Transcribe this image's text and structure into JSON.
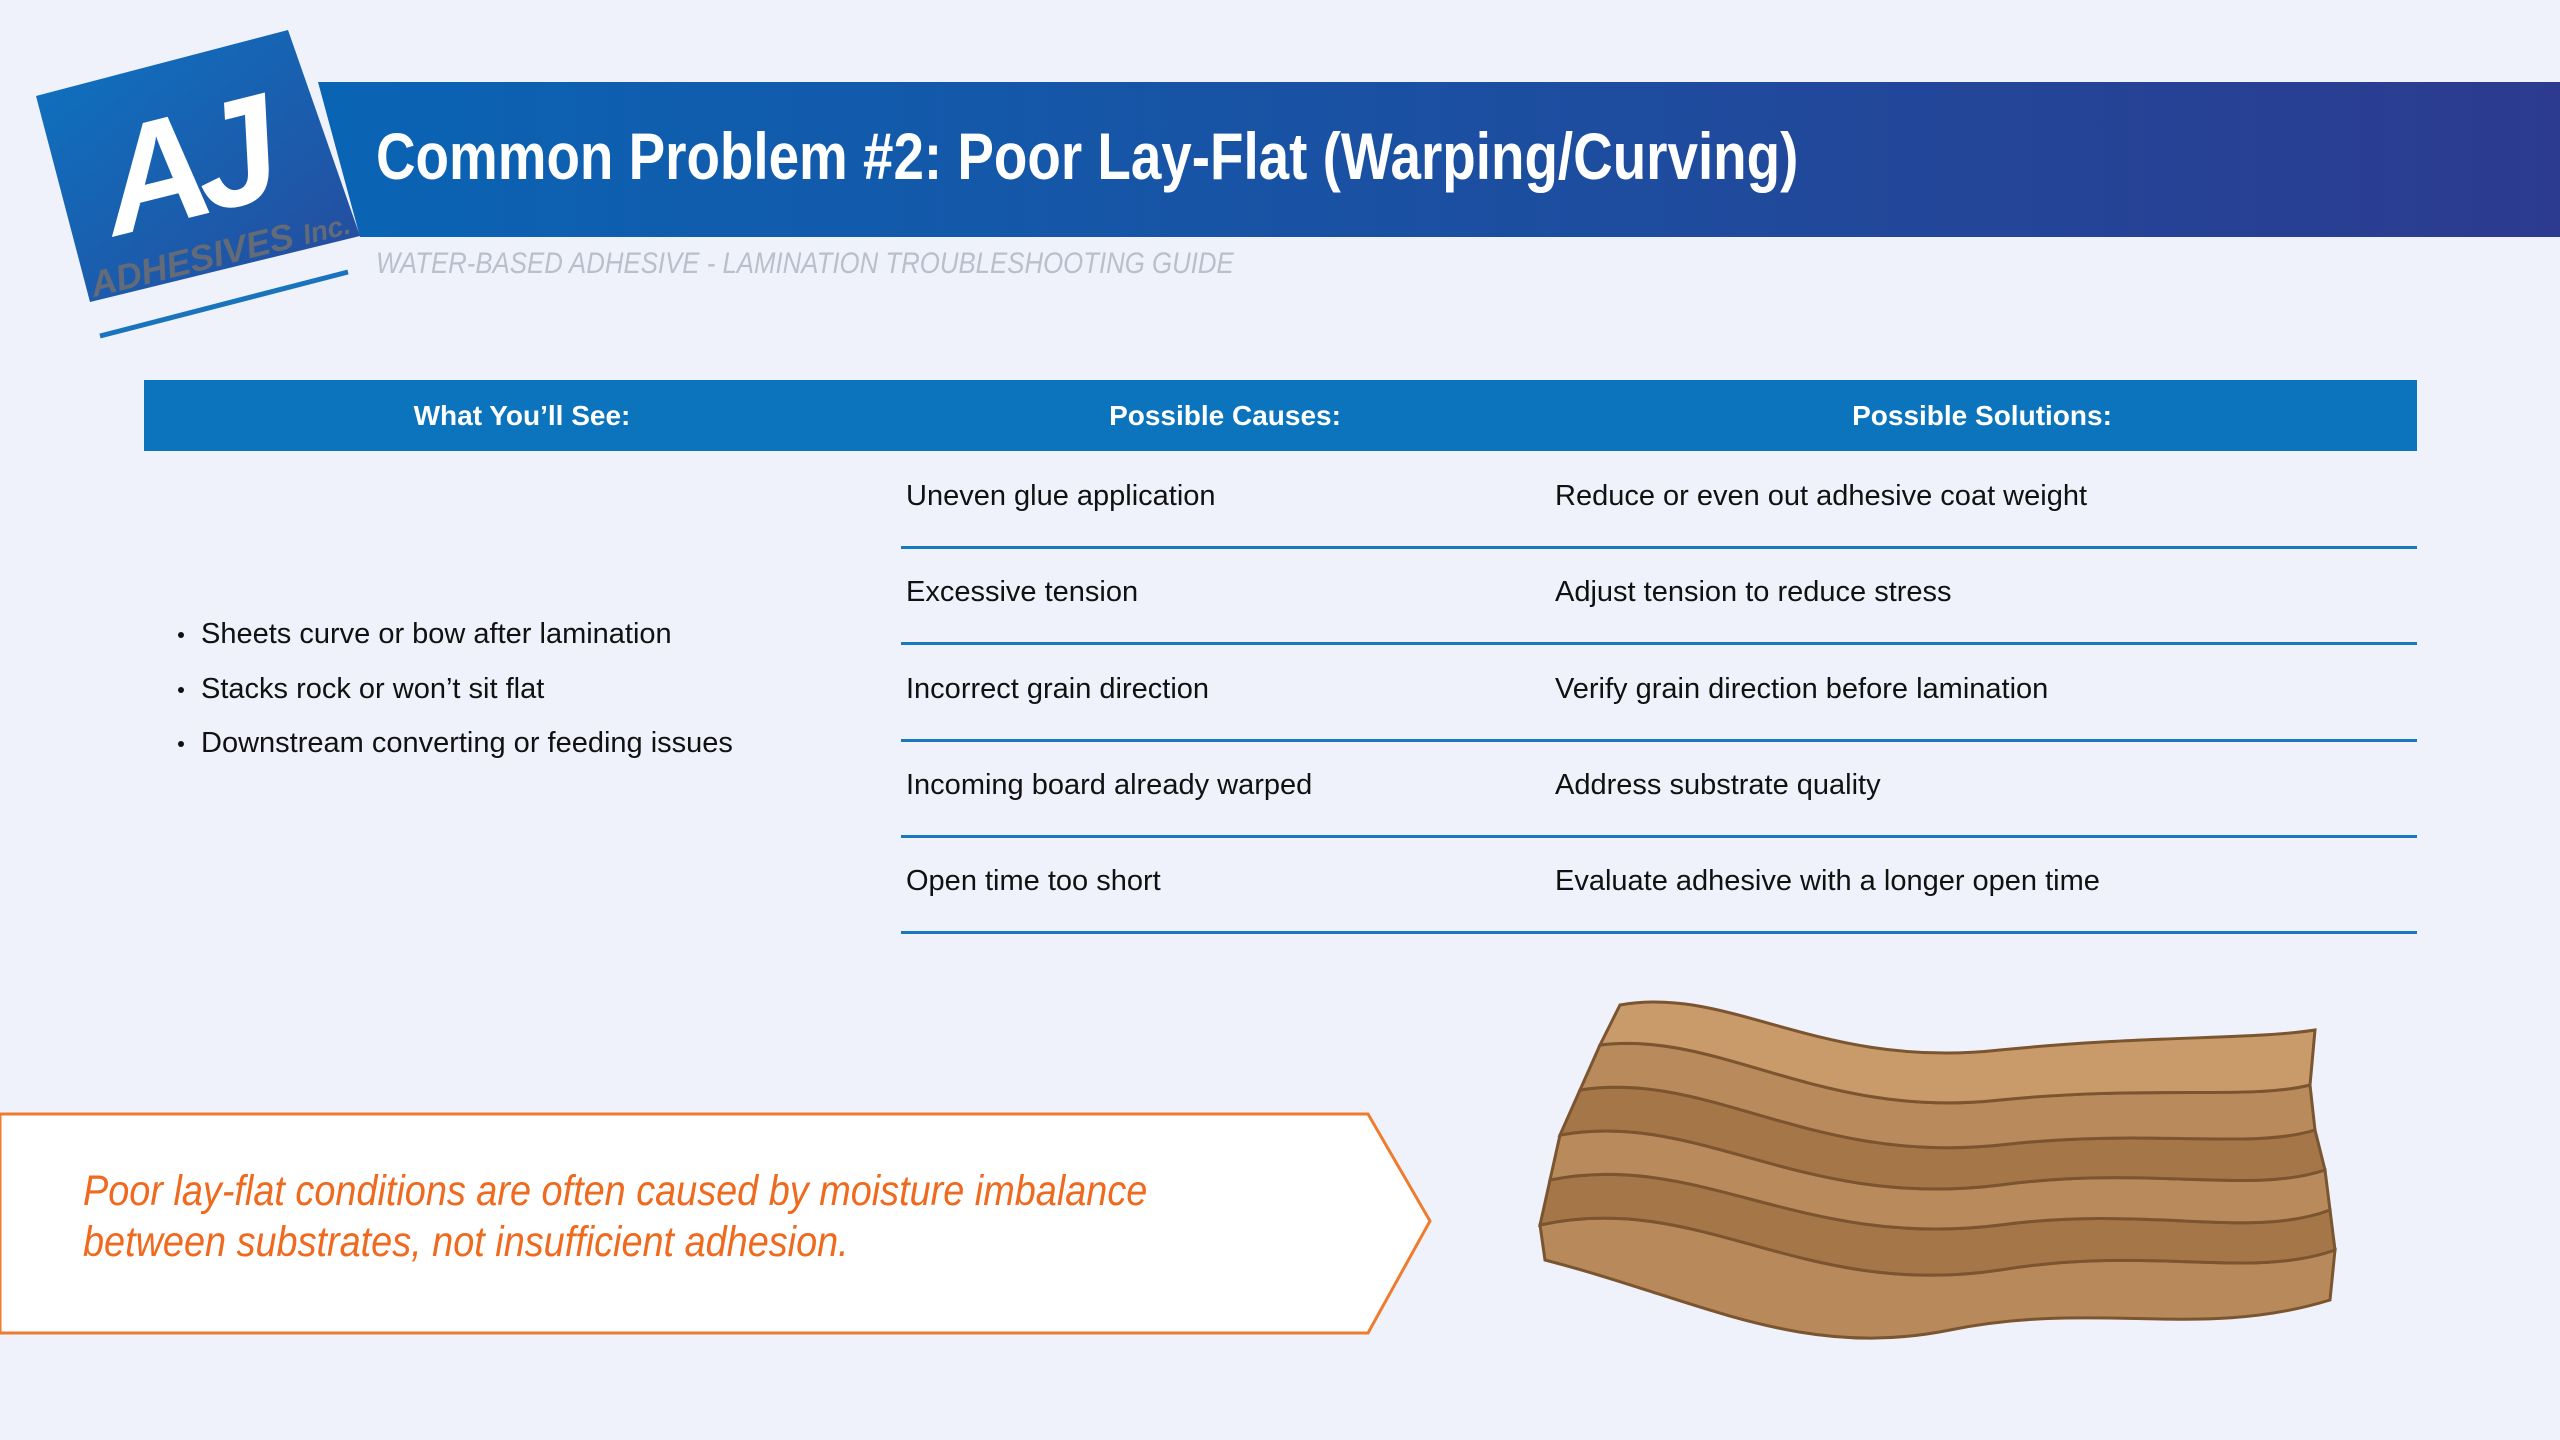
{
  "logo": {
    "mark": "AJ",
    "name": "ADHESIVES",
    "suffix": "Inc."
  },
  "header": {
    "title": "Common Problem #2: Poor Lay-Flat (Warping/Curving)",
    "subtitle": "WATER-BASED ADHESIVE - LAMINATION TROUBLESHOOTING GUIDE"
  },
  "table": {
    "columns": [
      "What You’ll See:",
      "Possible Causes:",
      "Possible Solutions:"
    ],
    "symptoms": [
      "Sheets curve or bow after lamination",
      "Stacks rock or won’t sit flat",
      "Downstream converting or feeding issues"
    ],
    "rows": [
      [
        "Uneven glue application",
        "Reduce or even out adhesive coat weight"
      ],
      [
        "Excessive tension",
        "Adjust tension to reduce stress"
      ],
      [
        "Incorrect grain direction",
        "Verify grain direction before lamination"
      ],
      [
        "Incoming board already warped",
        "Address substrate quality"
      ],
      [
        "Open time too short",
        "Evaluate adhesive with a longer open time"
      ]
    ]
  },
  "callout": {
    "lines": [
      "Poor lay-flat conditions are often caused by moisture imbalance",
      "between substrates, not insufficient adhesion."
    ]
  }
}
